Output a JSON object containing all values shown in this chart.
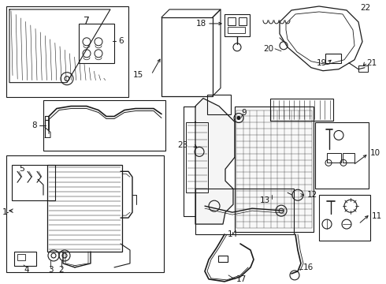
{
  "bg_color": "#ffffff",
  "line_color": "#1a1a1a",
  "fig_width": 4.9,
  "fig_height": 3.6,
  "dpi": 100,
  "label_fs": 7.5,
  "label_fs_sm": 6.5
}
